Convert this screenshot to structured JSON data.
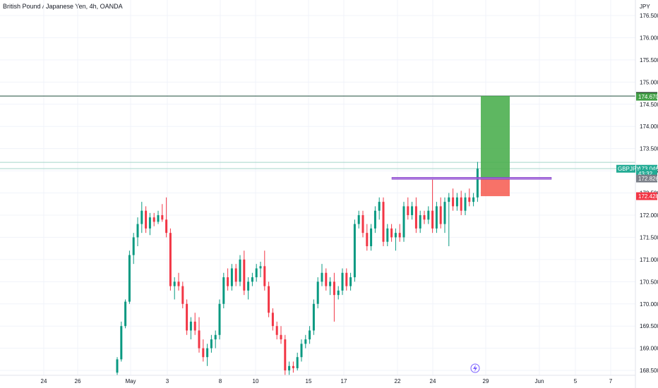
{
  "header": {
    "title": "British Pound / Japanese Yen, 4h, OANDA"
  },
  "axis": {
    "currency": "JPY"
  },
  "chart_data": {
    "type": "candlestick",
    "title": "British Pound / Japanese Yen, 4h, OANDA",
    "symbol": "GBPJPY",
    "y_ticks": [
      "168.500",
      "169.000",
      "169.500",
      "170.000",
      "170.500",
      "171.000",
      "171.500",
      "172.000",
      "172.500",
      "173.000",
      "173.500",
      "174.000",
      "174.500",
      "175.000",
      "175.500",
      "176.000",
      "176.500"
    ],
    "x_ticks": [
      "24",
      "26",
      "May",
      "3",
      "8",
      "10",
      "15",
      "17",
      "22",
      "24",
      "29",
      "Jun",
      "5",
      "7"
    ],
    "ylim": [
      168.39,
      176.85
    ],
    "grid": true,
    "price_tags": [
      {
        "label": "174.686",
        "value": 174.686,
        "bg": "#0f1b17"
      },
      {
        "label": "174.670",
        "value": 174.67,
        "bg": "#43a047"
      },
      {
        "label": "173.046",
        "value": 173.046,
        "bg": "#22ab94"
      },
      {
        "label": "43:32",
        "value": 172.94,
        "bg": "#22ab94"
      },
      {
        "label": "172.826",
        "value": 172.826,
        "bg": "#7a7f88"
      },
      {
        "label": "172.428",
        "value": 172.428,
        "bg": "#f23645"
      }
    ],
    "symbol_tag": {
      "label": "GBPJPY",
      "value": 173.046
    },
    "levels": [
      {
        "value": 174.686,
        "color": "#1e4d3a"
      },
      {
        "value": 173.19,
        "color": "#a5d6c9"
      },
      {
        "value": 173.05,
        "color": "#a5d6c9"
      }
    ],
    "position": {
      "entry": 172.826,
      "target": 174.686,
      "stop": 172.428,
      "profit_color": "#4caf50",
      "loss_color": "#f44336"
    },
    "resistance": {
      "value": 172.83,
      "color": "#9c5bd9"
    },
    "candles": [
      [
        168.45,
        168.8,
        168.4,
        168.75
      ],
      [
        168.75,
        169.6,
        168.7,
        169.5
      ],
      [
        169.5,
        170.1,
        169.45,
        170.05
      ],
      [
        170.05,
        171.2,
        170.0,
        171.1
      ],
      [
        171.1,
        171.6,
        170.9,
        171.5
      ],
      [
        171.5,
        171.95,
        171.3,
        171.8
      ],
      [
        171.8,
        172.3,
        171.6,
        172.1
      ],
      [
        172.1,
        172.2,
        171.6,
        171.7
      ],
      [
        171.7,
        172.05,
        171.55,
        171.95
      ],
      [
        171.95,
        172.05,
        171.75,
        171.85
      ],
      [
        171.85,
        172.1,
        171.8,
        172.0
      ],
      [
        172.0,
        172.25,
        171.85,
        171.9
      ],
      [
        171.9,
        172.4,
        171.5,
        171.6
      ],
      [
        171.6,
        171.7,
        170.3,
        170.4
      ],
      [
        170.4,
        170.6,
        170.1,
        170.5
      ],
      [
        170.5,
        170.7,
        170.3,
        170.4
      ],
      [
        170.4,
        170.5,
        169.9,
        170.0
      ],
      [
        170.0,
        170.1,
        169.3,
        169.4
      ],
      [
        169.4,
        169.7,
        169.2,
        169.6
      ],
      [
        169.6,
        169.8,
        169.3,
        169.4
      ],
      [
        169.4,
        169.7,
        168.9,
        169.0
      ],
      [
        169.0,
        169.2,
        168.7,
        168.8
      ],
      [
        168.8,
        169.1,
        168.6,
        169.0
      ],
      [
        169.0,
        169.3,
        168.9,
        169.2
      ],
      [
        169.2,
        169.4,
        169.0,
        169.3
      ],
      [
        169.3,
        170.1,
        169.2,
        170.0
      ],
      [
        170.0,
        170.7,
        169.9,
        170.6
      ],
      [
        170.6,
        170.8,
        170.3,
        170.4
      ],
      [
        170.4,
        170.9,
        170.3,
        170.8
      ],
      [
        170.8,
        170.9,
        170.4,
        170.5
      ],
      [
        170.5,
        171.1,
        170.4,
        171.0
      ],
      [
        171.0,
        171.2,
        170.2,
        170.3
      ],
      [
        170.3,
        170.6,
        170.1,
        170.5
      ],
      [
        170.5,
        170.7,
        170.4,
        170.6
      ],
      [
        170.6,
        170.9,
        170.5,
        170.8
      ],
      [
        170.8,
        170.95,
        170.6,
        170.85
      ],
      [
        170.85,
        171.2,
        170.3,
        170.4
      ],
      [
        170.4,
        170.5,
        169.7,
        169.8
      ],
      [
        169.8,
        169.9,
        169.4,
        169.5
      ],
      [
        169.5,
        169.6,
        169.2,
        169.3
      ],
      [
        169.3,
        169.5,
        169.1,
        169.2
      ],
      [
        169.2,
        169.3,
        168.4,
        168.5
      ],
      [
        168.5,
        168.7,
        168.4,
        168.6
      ],
      [
        168.6,
        168.7,
        168.45,
        168.55
      ],
      [
        168.55,
        168.9,
        168.5,
        168.8
      ],
      [
        168.8,
        169.2,
        168.7,
        169.1
      ],
      [
        169.1,
        169.3,
        169.0,
        169.2
      ],
      [
        169.2,
        169.5,
        169.1,
        169.4
      ],
      [
        169.4,
        170.1,
        169.3,
        170.0
      ],
      [
        170.0,
        170.6,
        169.9,
        170.5
      ],
      [
        170.5,
        170.9,
        170.4,
        170.7
      ],
      [
        170.7,
        170.8,
        170.3,
        170.4
      ],
      [
        170.4,
        170.6,
        170.2,
        170.5
      ],
      [
        170.5,
        170.7,
        169.6,
        170.2
      ],
      [
        170.2,
        170.4,
        170.1,
        170.3
      ],
      [
        170.3,
        170.8,
        170.2,
        170.7
      ],
      [
        170.7,
        170.8,
        170.3,
        170.4
      ],
      [
        170.4,
        170.7,
        170.3,
        170.6
      ],
      [
        170.6,
        171.9,
        170.5,
        171.8
      ],
      [
        171.8,
        172.1,
        171.7,
        172.0
      ],
      [
        172.0,
        172.1,
        171.5,
        171.6
      ],
      [
        171.6,
        171.8,
        171.2,
        171.3
      ],
      [
        171.3,
        171.8,
        171.2,
        171.7
      ],
      [
        171.7,
        172.2,
        171.6,
        172.1
      ],
      [
        172.1,
        172.4,
        171.9,
        172.3
      ],
      [
        172.3,
        172.4,
        171.3,
        171.4
      ],
      [
        171.4,
        171.8,
        171.3,
        171.7
      ],
      [
        171.7,
        171.8,
        171.4,
        171.5
      ],
      [
        171.5,
        171.7,
        171.2,
        171.6
      ],
      [
        171.6,
        171.8,
        171.4,
        171.5
      ],
      [
        171.5,
        172.3,
        171.4,
        172.2
      ],
      [
        172.2,
        172.4,
        171.9,
        172.0
      ],
      [
        172.0,
        172.3,
        171.9,
        172.2
      ],
      [
        172.2,
        172.4,
        171.6,
        171.7
      ],
      [
        171.7,
        172.1,
        171.6,
        172.0
      ],
      [
        172.0,
        172.1,
        171.8,
        171.9
      ],
      [
        171.9,
        172.2,
        171.8,
        172.1
      ],
      [
        172.1,
        172.8,
        171.6,
        171.7
      ],
      [
        171.7,
        172.3,
        171.6,
        172.2
      ],
      [
        172.2,
        172.4,
        171.7,
        171.8
      ],
      [
        171.8,
        172.4,
        171.6,
        172.3
      ],
      [
        172.3,
        172.5,
        171.3,
        172.4
      ],
      [
        172.4,
        172.6,
        172.1,
        172.2
      ],
      [
        172.2,
        172.5,
        172.1,
        172.4
      ],
      [
        172.4,
        172.55,
        172.0,
        172.1
      ],
      [
        172.1,
        172.5,
        172.0,
        172.4
      ],
      [
        172.4,
        172.6,
        172.2,
        172.3
      ],
      [
        172.3,
        172.5,
        172.2,
        172.4
      ],
      [
        172.4,
        173.2,
        172.3,
        173.05
      ]
    ]
  }
}
